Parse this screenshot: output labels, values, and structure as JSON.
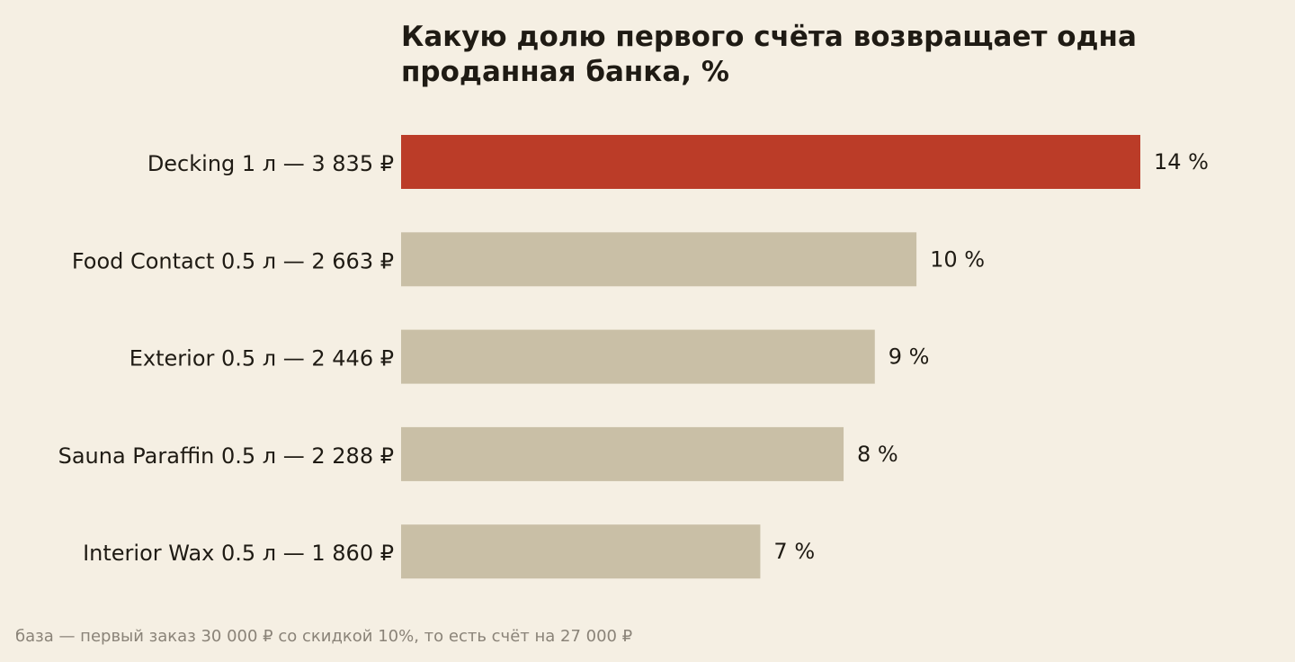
{
  "colors": {
    "background": "#f5efe3",
    "highlight_bar": "#bb3c28",
    "bar": "#c9bfa6",
    "text": "#1f1b14",
    "footnote": "#8a8378"
  },
  "chart_data": {
    "type": "bar",
    "orientation": "horizontal",
    "title": "Какую долю первого счёта возвращает одна\nпроданная банка, %",
    "categories": [
      "Decking 1 л — 3 835 ₽",
      "Food Contact 0.5 л — 2 663 ₽",
      "Exterior 0.5 л — 2 446 ₽",
      "Sauna Paraffin 0.5 л — 2 288 ₽",
      "Interior Wax 0.5 л — 1 860 ₽"
    ],
    "values": [
      14.2,
      9.9,
      9.1,
      8.5,
      6.9
    ],
    "value_labels": [
      "14 %",
      "10 %",
      "9 %",
      "8 %",
      "7 %"
    ],
    "highlight_index": 0,
    "xlim": [
      0,
      14.2
    ],
    "grid": false,
    "xlabel": "",
    "ylabel": "",
    "footnote": "база — первый заказ 30 000 ₽ со скидкой 10%, то есть счёт на 27 000 ₽"
  }
}
